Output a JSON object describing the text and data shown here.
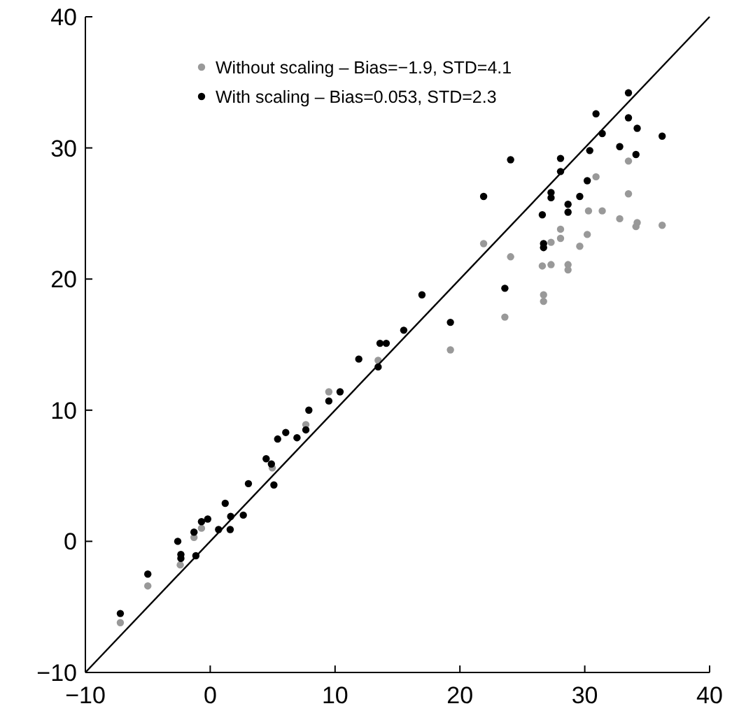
{
  "chart_data": {
    "type": "scatter",
    "xlim": [
      -10,
      40
    ],
    "ylim": [
      -10,
      40
    ],
    "xticks": [
      {
        "value": -10,
        "label": "−10"
      },
      0,
      10,
      20,
      30,
      40
    ],
    "yticks": [
      {
        "value": -10,
        "label": "−10"
      },
      0,
      10,
      20,
      30,
      40
    ],
    "legend": "top left",
    "marker": "circle",
    "grid": false,
    "series": [
      {
        "name": "Without scaling – Bias=−1.9, STD=4.1",
        "color": "#999999",
        "x": [
          -7.2,
          -5.0,
          -2.4,
          -1.3,
          -0.7,
          4.97,
          7.66,
          9.5,
          13.45,
          19.24,
          21.9,
          23.6,
          24.06,
          26.6,
          26.7,
          26.7,
          27.3,
          27.3,
          28.06,
          28.06,
          28.66,
          28.66,
          29.6,
          30.2,
          30.9,
          30.3,
          31.4,
          32.8,
          33.5,
          33.5,
          34.2,
          34.1,
          36.2
        ],
        "values": [
          -6.2,
          -3.4,
          -1.8,
          0.3,
          1.0,
          5.6,
          8.9,
          11.4,
          13.8,
          14.6,
          22.7,
          17.1,
          21.7,
          21.0,
          18.8,
          18.3,
          22.8,
          21.1,
          23.8,
          23.1,
          21.1,
          20.7,
          22.5,
          23.4,
          27.8,
          25.2,
          25.2,
          24.6,
          29.0,
          26.5,
          24.3,
          24.0,
          24.1
        ]
      },
      {
        "name": "With scaling – Bias=0.053, STD=2.3",
        "color": "#000000",
        "x": [
          -7.2,
          -5.0,
          -2.6,
          -2.35,
          -2.35,
          -1.15,
          -1.3,
          -0.7,
          -0.2,
          0.67,
          1.2,
          1.64,
          1.6,
          2.65,
          3.06,
          4.48,
          4.9,
          5.1,
          5.4,
          6.05,
          6.95,
          7.66,
          7.9,
          9.5,
          10.4,
          11.9,
          13.45,
          13.6,
          14.1,
          15.5,
          16.96,
          19.24,
          21.9,
          23.6,
          24.06,
          26.6,
          26.7,
          26.7,
          27.3,
          27.3,
          28.06,
          28.06,
          28.66,
          28.66,
          29.6,
          30.2,
          30.4,
          30.9,
          31.4,
          32.8,
          33.5,
          33.5,
          34.2,
          34.1,
          36.2
        ],
        "values": [
          -5.5,
          -2.5,
          0.0,
          -1.0,
          -1.3,
          -1.1,
          0.7,
          1.5,
          1.7,
          0.9,
          2.9,
          1.9,
          0.9,
          2.0,
          4.4,
          6.3,
          5.9,
          4.3,
          7.8,
          8.3,
          7.9,
          8.5,
          10.0,
          10.7,
          11.4,
          13.9,
          13.3,
          15.1,
          15.1,
          16.1,
          18.8,
          16.7,
          26.3,
          19.3,
          29.1,
          24.9,
          22.7,
          22.4,
          26.6,
          26.2,
          29.2,
          28.2,
          25.7,
          25.1,
          26.3,
          27.5,
          29.8,
          32.6,
          31.1,
          30.1,
          34.2,
          32.3,
          31.5,
          29.5,
          30.9
        ]
      },
      {
        "type": "line",
        "marker": "none",
        "color": "#000000",
        "x": [
          -10,
          40
        ],
        "values": [
          -10,
          40
        ]
      }
    ]
  }
}
